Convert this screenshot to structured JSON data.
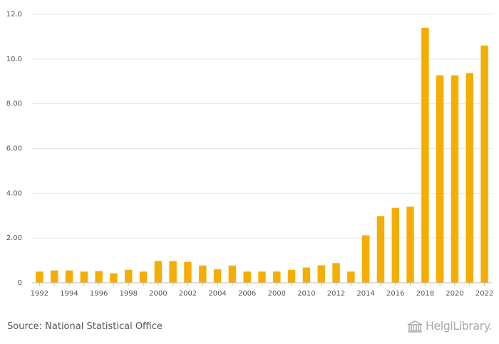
{
  "chart_data": {
    "type": "bar",
    "categories": [
      "1992",
      "1993",
      "1994",
      "1995",
      "1996",
      "1997",
      "1998",
      "1999",
      "2000",
      "2001",
      "2002",
      "2003",
      "2004",
      "2005",
      "2006",
      "2007",
      "2008",
      "2009",
      "2010",
      "2011",
      "2012",
      "2013",
      "2014",
      "2015",
      "2016",
      "2017",
      "2018",
      "2019",
      "2020",
      "2021",
      "2022"
    ],
    "values": [
      0.5,
      0.55,
      0.55,
      0.5,
      0.52,
      0.42,
      0.58,
      0.5,
      0.97,
      0.97,
      0.93,
      0.77,
      0.6,
      0.77,
      0.5,
      0.5,
      0.5,
      0.58,
      0.68,
      0.78,
      0.88,
      0.5,
      2.12,
      2.98,
      3.35,
      3.4,
      11.4,
      9.27,
      9.27,
      9.37,
      10.6
    ],
    "x_tick_labels": [
      "1992",
      "1994",
      "1996",
      "1998",
      "2000",
      "2002",
      "2004",
      "2006",
      "2008",
      "2010",
      "2012",
      "2014",
      "2016",
      "2018",
      "2020",
      "2022"
    ],
    "y_ticks": [
      0,
      2,
      4,
      6,
      8,
      10,
      12
    ],
    "y_tick_labels": [
      "0",
      "2.00",
      "4.00",
      "6.00",
      "8.00",
      "10.0",
      "12.0"
    ],
    "ylim": [
      0,
      12
    ],
    "grid": true,
    "bar_color": "#f5ad00",
    "grid_color": "#e6e6e6",
    "title": "",
    "xlabel": "",
    "ylabel": ""
  },
  "footer": {
    "source": "Source: National Statistical Office",
    "logo_text": "HelgiLibrary."
  }
}
